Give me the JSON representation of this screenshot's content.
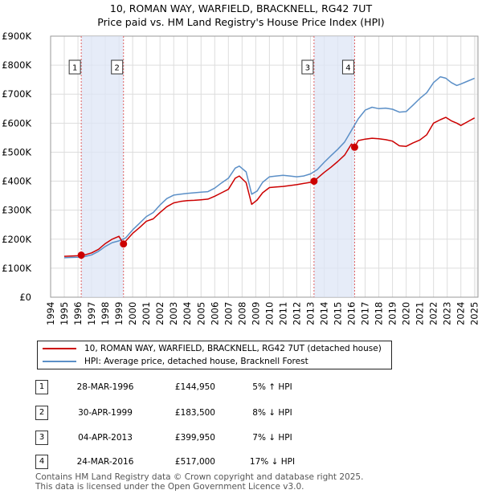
{
  "chart_data": {
    "type": "line",
    "title": "10, ROMAN WAY, WARFIELD, BRACKNELL, RG42 7UT",
    "subtitle": "Price paid vs. HM Land Registry's House Price Index (HPI)",
    "ylim": [
      0,
      900000
    ],
    "xlim": [
      1994,
      2025.25
    ],
    "y_ticks": [
      0,
      100000,
      200000,
      300000,
      400000,
      500000,
      600000,
      700000,
      800000,
      900000
    ],
    "y_tick_labels": [
      "£0",
      "£100K",
      "£200K",
      "£300K",
      "£400K",
      "£500K",
      "£600K",
      "£700K",
      "£800K",
      "£900K"
    ],
    "x_tick_labels": [
      "1994",
      "1995",
      "1996",
      "1997",
      "1998",
      "1999",
      "2000",
      "2001",
      "2002",
      "2003",
      "2004",
      "2005",
      "2006",
      "2007",
      "2008",
      "2009",
      "2010",
      "2011",
      "2012",
      "2013",
      "2014",
      "2015",
      "2016",
      "2017",
      "2018",
      "2019",
      "2020",
      "2021",
      "2022",
      "2023",
      "2024",
      "2025"
    ],
    "grid": true,
    "shaded_spans": [
      [
        1996.24,
        1999.33
      ],
      [
        2013.26,
        2016.23
      ]
    ],
    "series": [
      {
        "name": "10, ROMAN WAY, WARFIELD, BRACKNELL, RG42 7UT (detached house)",
        "color": "#cc0000",
        "x": [
          1995.0,
          1995.5,
          1996.0,
          1996.24,
          1996.5,
          1997.0,
          1997.5,
          1998.0,
          1998.5,
          1999.0,
          1999.33,
          1999.6,
          2000.0,
          2000.5,
          2001.0,
          2001.5,
          2002.0,
          2002.5,
          2003.0,
          2003.5,
          2004.0,
          2004.5,
          2005.0,
          2005.5,
          2006.0,
          2006.5,
          2007.0,
          2007.5,
          2007.8,
          2008.3,
          2008.7,
          2009.1,
          2009.5,
          2010.0,
          2010.5,
          2011.0,
          2011.5,
          2012.0,
          2012.5,
          2013.0,
          2013.26,
          2013.5,
          2014.0,
          2014.5,
          2015.0,
          2015.5,
          2016.0,
          2016.23,
          2016.5,
          2017.0,
          2017.5,
          2018.0,
          2018.5,
          2019.0,
          2019.5,
          2020.0,
          2020.5,
          2021.0,
          2021.5,
          2022.0,
          2022.5,
          2022.9,
          2023.3,
          2023.7,
          2024.0,
          2024.5,
          2025.0
        ],
        "values": [
          141000,
          142000,
          143000,
          144950,
          146000,
          153000,
          165000,
          185000,
          200000,
          210000,
          183500,
          199000,
          220000,
          240000,
          262000,
          270000,
          292000,
          312000,
          325000,
          330000,
          333000,
          334000,
          336000,
          338000,
          348000,
          360000,
          372000,
          410000,
          418000,
          395000,
          320000,
          335000,
          360000,
          378000,
          380000,
          382000,
          385000,
          388000,
          392000,
          396000,
          399950,
          410000,
          430000,
          448000,
          468000,
          490000,
          528000,
          517000,
          540000,
          545000,
          548000,
          546000,
          543000,
          538000,
          522000,
          520000,
          532000,
          542000,
          560000,
          600000,
          612000,
          620000,
          608000,
          600000,
          592000,
          605000,
          618000
        ]
      },
      {
        "name": "HPI: Average price, detached house, Bracknell Forest",
        "color": "#5b8fc7",
        "x": [
          1995.0,
          1995.5,
          1996.0,
          1996.5,
          1997.0,
          1997.5,
          1998.0,
          1998.5,
          1999.0,
          1999.5,
          2000.0,
          2000.5,
          2001.0,
          2001.5,
          2002.0,
          2002.5,
          2003.0,
          2003.5,
          2004.0,
          2004.5,
          2005.0,
          2005.5,
          2006.0,
          2006.5,
          2007.0,
          2007.5,
          2007.8,
          2008.3,
          2008.7,
          2009.1,
          2009.5,
          2010.0,
          2010.5,
          2011.0,
          2011.5,
          2012.0,
          2012.5,
          2013.0,
          2013.5,
          2014.0,
          2014.5,
          2015.0,
          2015.5,
          2016.0,
          2016.5,
          2017.0,
          2017.5,
          2018.0,
          2018.5,
          2019.0,
          2019.5,
          2020.0,
          2020.5,
          2021.0,
          2021.5,
          2022.0,
          2022.5,
          2022.9,
          2023.3,
          2023.7,
          2024.0,
          2024.5,
          2025.0
        ],
        "values": [
          136000,
          137000,
          138000,
          140000,
          146000,
          158000,
          175000,
          188000,
          194000,
          205000,
          232000,
          255000,
          278000,
          292000,
          318000,
          340000,
          352000,
          355000,
          358000,
          360000,
          362000,
          364000,
          376000,
          394000,
          410000,
          445000,
          452000,
          432000,
          355000,
          366000,
          396000,
          415000,
          418000,
          420000,
          418000,
          415000,
          418000,
          425000,
          440000,
          465000,
          488000,
          510000,
          535000,
          575000,
          615000,
          645000,
          655000,
          650000,
          652000,
          648000,
          638000,
          640000,
          662000,
          685000,
          705000,
          740000,
          760000,
          755000,
          740000,
          730000,
          735000,
          745000,
          755000
        ]
      }
    ],
    "annotations": [
      {
        "label": "1",
        "x": 1996.24,
        "value": 144950
      },
      {
        "label": "2",
        "x": 1999.33,
        "value": 183500
      },
      {
        "label": "3",
        "x": 2013.26,
        "value": 399950
      },
      {
        "label": "4",
        "x": 2016.23,
        "value": 517000
      }
    ]
  },
  "legend": {
    "property_label": "10, ROMAN WAY, WARFIELD, BRACKNELL, RG42 7UT (detached house)",
    "hpi_label": "HPI: Average price, detached house, Bracknell Forest",
    "property_color": "#cc0000",
    "hpi_color": "#5b8fc7"
  },
  "transactions": [
    {
      "num": "1",
      "date": "28-MAR-1996",
      "price": "£144,950",
      "hpi": "5% ↑ HPI"
    },
    {
      "num": "2",
      "date": "30-APR-1999",
      "price": "£183,500",
      "hpi": "8% ↓ HPI"
    },
    {
      "num": "3",
      "date": "04-APR-2013",
      "price": "£399,950",
      "hpi": "7% ↓ HPI"
    },
    {
      "num": "4",
      "date": "24-MAR-2016",
      "price": "£517,000",
      "hpi": "17% ↓ HPI"
    }
  ],
  "footer": {
    "line1": "Contains HM Land Registry data © Crown copyright and database right 2025.",
    "line2": "This data is licensed under the Open Government Licence v3.0."
  }
}
